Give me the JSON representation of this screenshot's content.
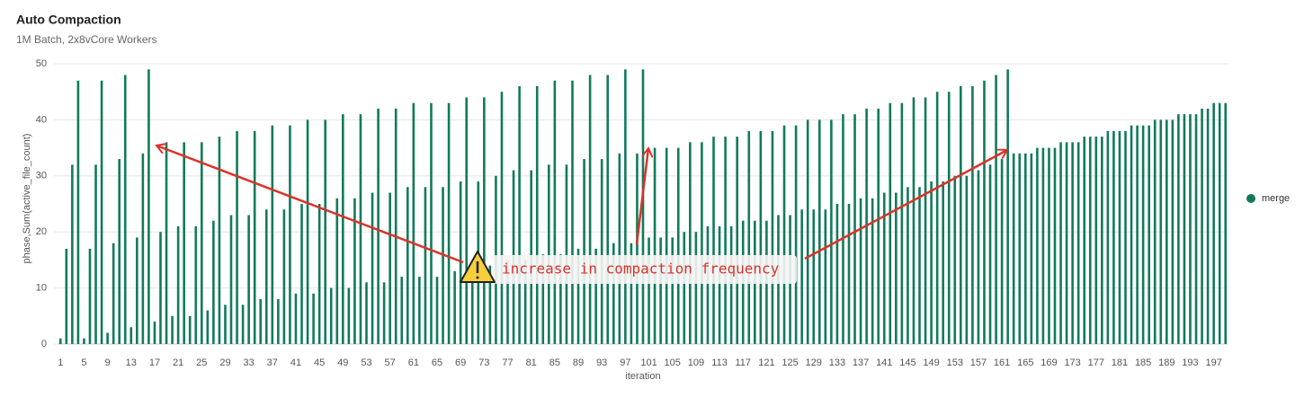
{
  "chart_data": {
    "type": "bar",
    "title": "Auto Compaction",
    "subtitle": "1M Batch, 2x8vCore Workers",
    "x_label": "iteration",
    "y_label": "phase,Sum(active_file_count)",
    "annotation": "increase in compaction frequency",
    "ylim": [
      0,
      50
    ],
    "yticks": [
      0,
      10,
      20,
      30,
      40,
      50
    ],
    "grid": true,
    "legend": "right",
    "categories": [
      1,
      null,
      null,
      null,
      5,
      null,
      null,
      null,
      9,
      null,
      null,
      null,
      13,
      null,
      null,
      null,
      17,
      null,
      null,
      null,
      21,
      null,
      null,
      null,
      25,
      null,
      null,
      null,
      29,
      null,
      null,
      null,
      33,
      null,
      null,
      null,
      37,
      null,
      null,
      null,
      41,
      null,
      null,
      null,
      45,
      null,
      null,
      null,
      49,
      null,
      null,
      null,
      53,
      null,
      null,
      null,
      57,
      null,
      null,
      null,
      61,
      null,
      null,
      null,
      65,
      null,
      null,
      null,
      69,
      null,
      null,
      null,
      73,
      null,
      null,
      null,
      77,
      null,
      null,
      null,
      81,
      null,
      null,
      null,
      85,
      null,
      null,
      null,
      89,
      null,
      null,
      null,
      93,
      null,
      null,
      null,
      97,
      null,
      null,
      null,
      101,
      null,
      null,
      null,
      105,
      null,
      null,
      null,
      109,
      null,
      null,
      null,
      113,
      null,
      null,
      null,
      117,
      null,
      null,
      null,
      121,
      null,
      null,
      null,
      125,
      null,
      null,
      null,
      129,
      null,
      null,
      null,
      133,
      null,
      null,
      null,
      137,
      null,
      null,
      null,
      141,
      null,
      null,
      null,
      145,
      null,
      null,
      null,
      149,
      null,
      null,
      null,
      153,
      null,
      null,
      null,
      157,
      null,
      null,
      null,
      161,
      null,
      null,
      null,
      165,
      null,
      null,
      null,
      169,
      null,
      null,
      null,
      173,
      null,
      null,
      null,
      177,
      null,
      null,
      null,
      181,
      null,
      null,
      null,
      185,
      null,
      null,
      null,
      189,
      null,
      null,
      null,
      193,
      null,
      null,
      null,
      197,
      null,
      null
    ],
    "series": [
      {
        "name": "merge",
        "color": "#127a5b",
        "values": [
          1,
          17,
          32,
          47,
          1,
          17,
          32,
          47,
          2,
          18,
          33,
          48,
          3,
          19,
          34,
          49,
          4,
          20,
          36,
          5,
          21,
          36,
          5,
          21,
          36,
          6,
          22,
          37,
          7,
          23,
          38,
          7,
          23,
          38,
          8,
          24,
          39,
          8,
          24,
          39,
          9,
          25,
          40,
          9,
          25,
          40,
          10,
          26,
          41,
          10,
          26,
          41,
          11,
          27,
          42,
          11,
          27,
          42,
          12,
          28,
          43,
          12,
          28,
          43,
          12,
          28,
          43,
          13,
          29,
          44,
          13,
          29,
          44,
          14,
          30,
          45,
          15,
          31,
          46,
          15,
          31,
          46,
          16,
          32,
          47,
          16,
          32,
          47,
          17,
          33,
          48,
          17,
          33,
          48,
          18,
          34,
          49,
          18,
          34,
          49,
          19,
          35,
          19,
          35,
          19,
          35,
          20,
          36,
          20,
          36,
          21,
          37,
          21,
          37,
          21,
          37,
          22,
          38,
          22,
          38,
          22,
          38,
          23,
          39,
          23,
          39,
          24,
          40,
          24,
          40,
          24,
          40,
          25,
          41,
          25,
          41,
          26,
          42,
          26,
          42,
          27,
          43,
          27,
          43,
          28,
          44,
          28,
          44,
          29,
          45,
          29,
          45,
          30,
          46,
          30,
          46,
          31,
          47,
          32,
          48,
          33,
          49,
          34,
          34,
          34,
          34,
          35,
          35,
          35,
          35,
          36,
          36,
          36,
          36,
          37,
          37,
          37,
          37,
          38,
          38,
          38,
          38,
          39,
          39,
          39,
          39,
          40,
          40,
          40,
          40,
          41,
          41,
          41,
          41,
          42,
          42,
          43,
          43,
          43
        ]
      }
    ]
  }
}
